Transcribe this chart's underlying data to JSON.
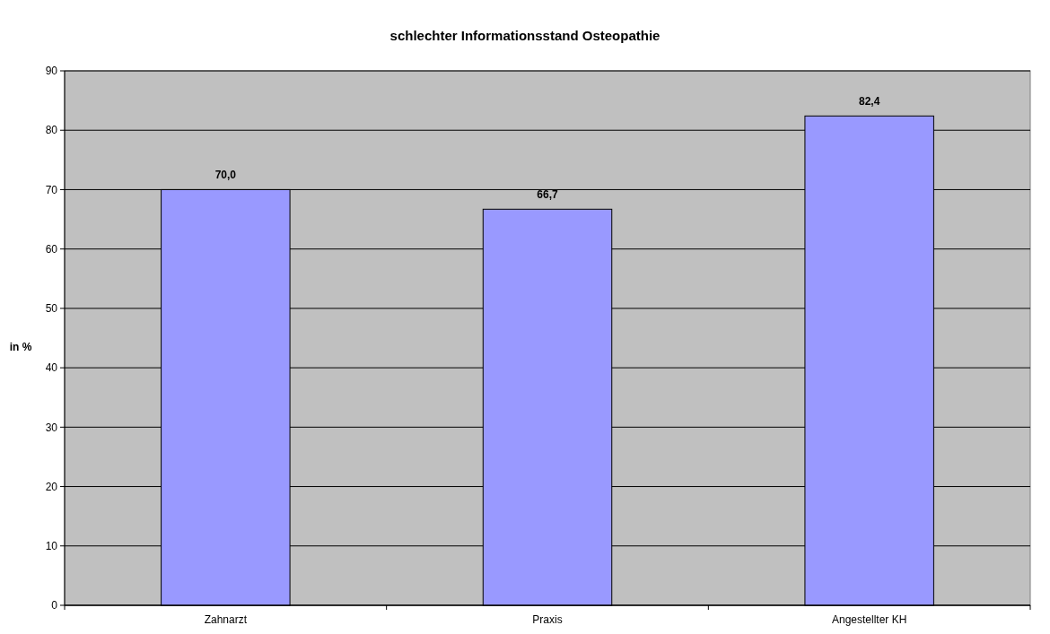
{
  "chart_data": {
    "type": "bar",
    "title": "schlechter Informationsstand Osteopathie",
    "ylabel": "in %",
    "categories": [
      "Zahnarzt",
      "Praxis",
      "Angestellter KH"
    ],
    "values": [
      70.0,
      66.7,
      82.4
    ],
    "value_labels": [
      "70,0",
      "66,7",
      "82,4"
    ],
    "color": "#9999ff",
    "ylim": [
      0,
      90
    ],
    "yticks": [
      0,
      10,
      20,
      30,
      40,
      50,
      60,
      70,
      80,
      90
    ],
    "grid": "y"
  }
}
